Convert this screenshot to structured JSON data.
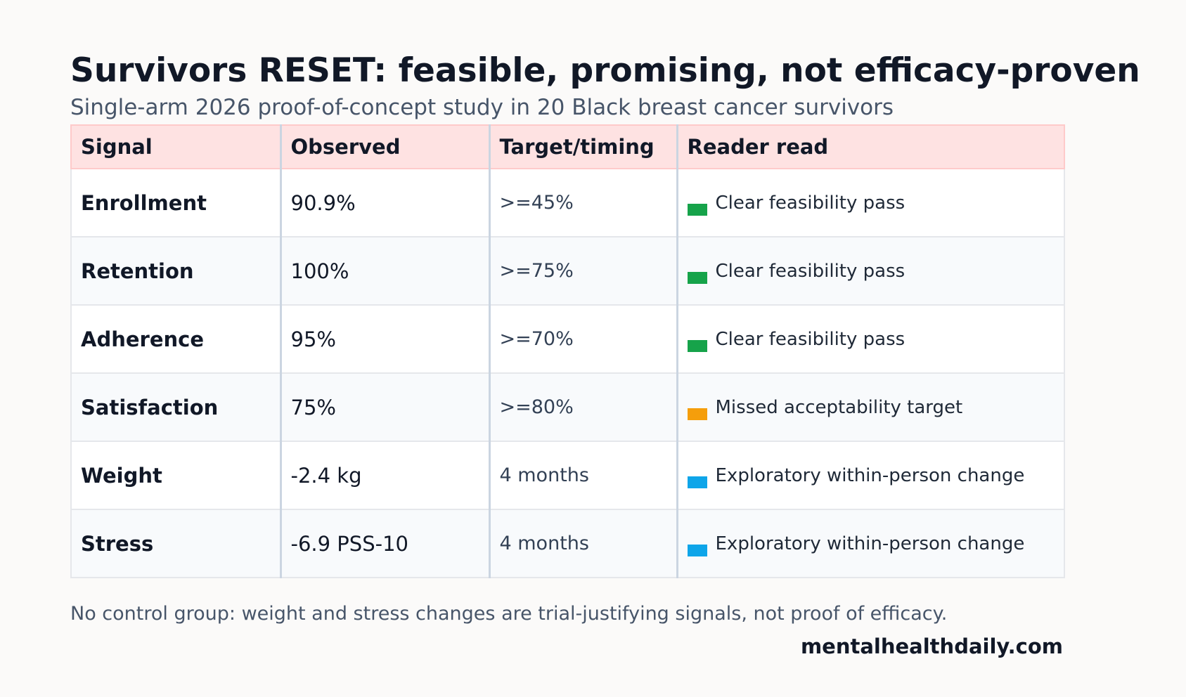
{
  "header": {
    "title": "Survivors RESET: feasible, promising, not efficacy-proven",
    "subtitle": "Single-arm 2026 proof-of-concept study in 20 Black breast cancer survivors"
  },
  "table": {
    "columns": [
      "Signal",
      "Observed",
      "Target/timing",
      "Reader read"
    ],
    "rows": [
      {
        "signal": "Enrollment",
        "observed": "90.9%",
        "target": ">=45%",
        "read": "Clear feasibility pass",
        "color": "#16a34a"
      },
      {
        "signal": "Retention",
        "observed": "100%",
        "target": ">=75%",
        "read": "Clear feasibility pass",
        "color": "#16a34a"
      },
      {
        "signal": "Adherence",
        "observed": "95%",
        "target": ">=70%",
        "read": "Clear feasibility pass",
        "color": "#16a34a"
      },
      {
        "signal": "Satisfaction",
        "observed": "75%",
        "target": ">=80%",
        "read": "Missed acceptability target",
        "color": "#f59e0b"
      },
      {
        "signal": "Weight",
        "observed": "-2.4 kg",
        "target": "4 months",
        "read": "Exploratory within-person change",
        "color": "#0ea5e9"
      },
      {
        "signal": "Stress",
        "observed": "-6.9 PSS-10",
        "target": "4 months",
        "read": "Exploratory within-person change",
        "color": "#0ea5e9"
      }
    ]
  },
  "footer": {
    "note": "No control group: weight and stress changes are trial-justifying signals, not proof of efficacy.",
    "brand": "mentalhealthdaily.com"
  }
}
